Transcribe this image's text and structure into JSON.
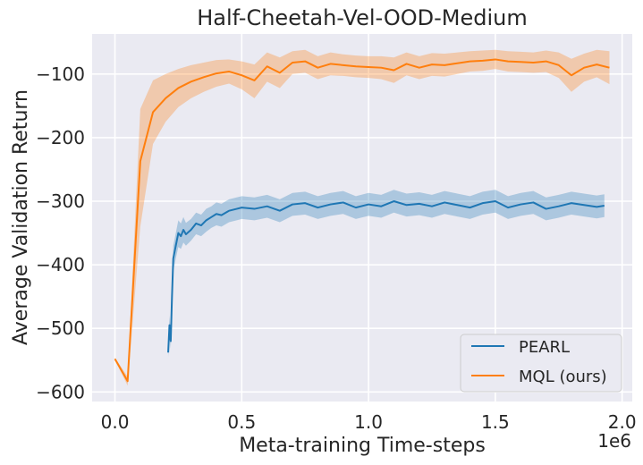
{
  "chart_data": {
    "type": "line",
    "title": "Half-Cheetah-Vel-OOD-Medium",
    "xlabel": "Meta-training Time-steps",
    "ylabel": "Average Validation Return",
    "x_offset_text": "1e6",
    "xlim": [
      -0.09,
      2.04
    ],
    "ylim": [
      -615,
      -37
    ],
    "xticks": [
      0.0,
      0.5,
      1.0,
      1.5,
      2.0
    ],
    "xtick_labels": [
      "0.0",
      "0.5",
      "1.0",
      "1.5",
      "2.0"
    ],
    "yticks": [
      -600,
      -500,
      -400,
      -300,
      -200,
      -100
    ],
    "ytick_labels": [
      "−600",
      "−500",
      "−400",
      "−300",
      "−200",
      "−100"
    ],
    "grid": true,
    "legend_position": "lower-right",
    "colors": {
      "background": "#EAEAF2",
      "grid": "#FFFFFF",
      "pearl": "#1F77B4",
      "mql": "#FF7F0E"
    },
    "series": [
      {
        "name": "PEARL",
        "key": "pearl",
        "x": [
          0.21,
          0.215,
          0.22,
          0.225,
          0.23,
          0.24,
          0.25,
          0.26,
          0.27,
          0.28,
          0.3,
          0.32,
          0.34,
          0.36,
          0.38,
          0.4,
          0.42,
          0.45,
          0.48,
          0.5,
          0.55,
          0.6,
          0.65,
          0.7,
          0.75,
          0.8,
          0.85,
          0.9,
          0.95,
          1.0,
          1.05,
          1.1,
          1.15,
          1.2,
          1.25,
          1.3,
          1.35,
          1.4,
          1.45,
          1.5,
          1.55,
          1.6,
          1.65,
          1.7,
          1.75,
          1.8,
          1.85,
          1.9,
          1.93
        ],
        "y": [
          -538,
          -495,
          -520,
          -450,
          -390,
          -370,
          -350,
          -355,
          -345,
          -352,
          -345,
          -335,
          -338,
          -330,
          -325,
          -320,
          -322,
          -315,
          -312,
          -310,
          -312,
          -308,
          -315,
          -305,
          -303,
          -310,
          -305,
          -302,
          -310,
          -305,
          -308,
          -300,
          -306,
          -304,
          -308,
          -302,
          -306,
          -310,
          -303,
          -300,
          -310,
          -305,
          -302,
          -312,
          -308,
          -303,
          -306,
          -309,
          -307
        ],
        "lower": [
          -545,
          -510,
          -532,
          -475,
          -410,
          -390,
          -372,
          -375,
          -365,
          -370,
          -362,
          -352,
          -355,
          -348,
          -342,
          -338,
          -340,
          -333,
          -330,
          -328,
          -330,
          -326,
          -333,
          -323,
          -321,
          -328,
          -323,
          -320,
          -328,
          -323,
          -326,
          -318,
          -324,
          -322,
          -326,
          -320,
          -324,
          -328,
          -321,
          -318,
          -328,
          -323,
          -320,
          -330,
          -326,
          -321,
          -324,
          -327,
          -325
        ],
        "upper": [
          -530,
          -480,
          -508,
          -425,
          -370,
          -350,
          -330,
          -335,
          -325,
          -334,
          -328,
          -318,
          -321,
          -312,
          -308,
          -302,
          -304,
          -297,
          -294,
          -292,
          -294,
          -290,
          -297,
          -287,
          -285,
          -292,
          -287,
          -284,
          -292,
          -287,
          -290,
          -282,
          -288,
          -286,
          -290,
          -284,
          -288,
          -292,
          -285,
          -282,
          -292,
          -287,
          -284,
          -294,
          -290,
          -285,
          -288,
          -291,
          -289
        ]
      },
      {
        "name": "MQL (ours)",
        "key": "mql",
        "x": [
          0.0,
          0.05,
          0.1,
          0.15,
          0.2,
          0.25,
          0.3,
          0.35,
          0.4,
          0.45,
          0.5,
          0.55,
          0.6,
          0.65,
          0.7,
          0.75,
          0.8,
          0.85,
          0.9,
          0.95,
          1.0,
          1.05,
          1.1,
          1.15,
          1.2,
          1.25,
          1.3,
          1.35,
          1.4,
          1.45,
          1.5,
          1.55,
          1.6,
          1.65,
          1.7,
          1.75,
          1.8,
          1.85,
          1.9,
          1.95
        ],
        "y": [
          -548,
          -583,
          -237,
          -160,
          -138,
          -122,
          -112,
          -105,
          -99,
          -96,
          -102,
          -110,
          -88,
          -98,
          -82,
          -80,
          -90,
          -84,
          -86,
          -88,
          -89,
          -90,
          -94,
          -84,
          -90,
          -85,
          -86,
          -83,
          -80,
          -79,
          -77,
          -80,
          -81,
          -82,
          -80,
          -86,
          -102,
          -90,
          -85,
          -90
        ],
        "lower": [
          -550,
          -590,
          -340,
          -210,
          -175,
          -152,
          -138,
          -128,
          -120,
          -115,
          -124,
          -138,
          -112,
          -122,
          -100,
          -98,
          -108,
          -102,
          -103,
          -105,
          -106,
          -108,
          -114,
          -102,
          -108,
          -103,
          -104,
          -100,
          -96,
          -95,
          -92,
          -96,
          -97,
          -98,
          -97,
          -106,
          -128,
          -112,
          -105,
          -116
        ],
        "upper": [
          -546,
          -576,
          -155,
          -110,
          -100,
          -92,
          -86,
          -82,
          -78,
          -77,
          -80,
          -85,
          -66,
          -74,
          -64,
          -62,
          -72,
          -66,
          -69,
          -71,
          -72,
          -72,
          -74,
          -66,
          -72,
          -67,
          -68,
          -66,
          -64,
          -63,
          -62,
          -64,
          -65,
          -66,
          -63,
          -66,
          -76,
          -68,
          -62,
          -64
        ]
      }
    ]
  }
}
